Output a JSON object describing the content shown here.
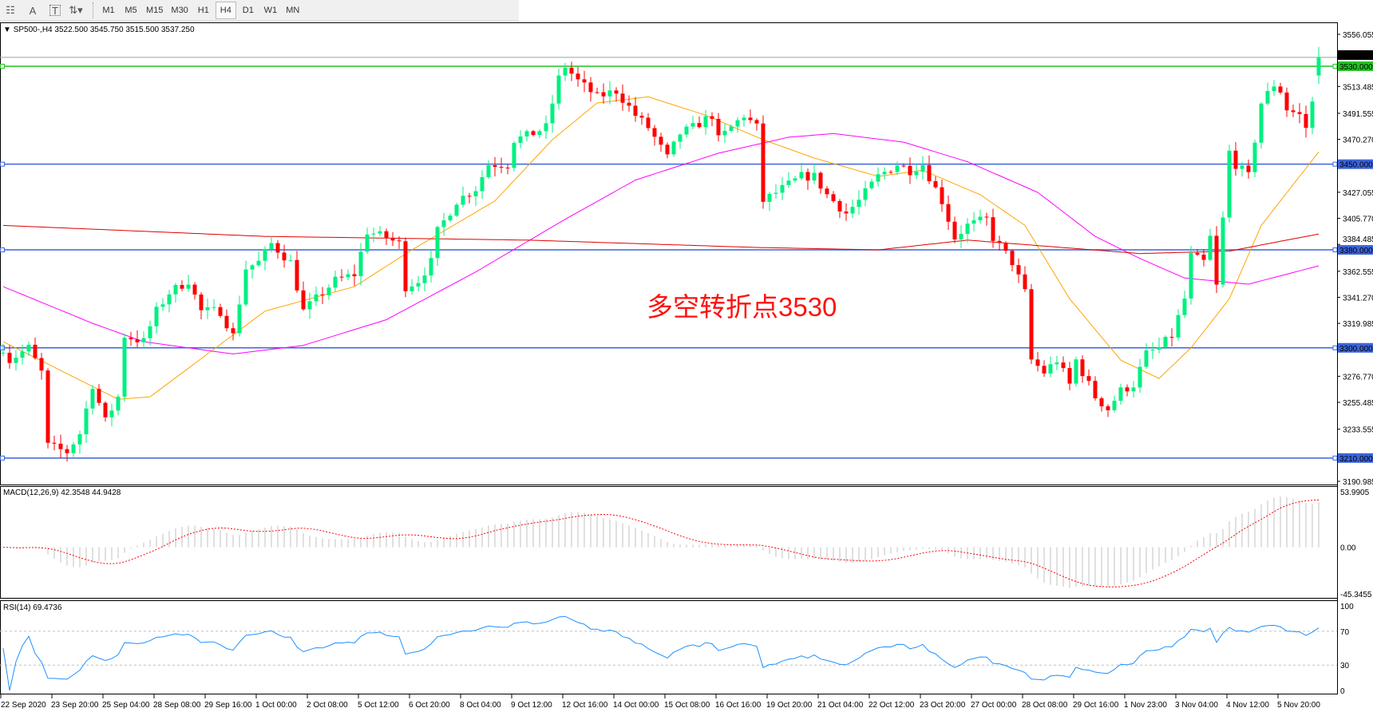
{
  "toolbar": {
    "items": [
      {
        "icon": "grid-icon",
        "label": ""
      },
      {
        "icon": "text-a-icon",
        "label": "A"
      },
      {
        "icon": "text-box-icon",
        "label": "T"
      },
      {
        "icon": "arrows-dropdown-icon",
        "label": "⇅▾"
      }
    ],
    "timeframes": [
      "M1",
      "M5",
      "M15",
      "M30",
      "H1",
      "H4",
      "D1",
      "W1",
      "MN"
    ],
    "active": "H4"
  },
  "chart": {
    "header": "SP500-,H4  3522.500 3545.750 3515.500 3537.250",
    "annotation": "多空转折点3530",
    "price_ticks": [
      "3556.055",
      "3513.485",
      "3491.555",
      "3470.270",
      "3427.055",
      "3405.770",
      "3384.485",
      "3362.555",
      "3341.270",
      "3319.985",
      "3276.770",
      "3255.485",
      "3233.555",
      "3190.985"
    ],
    "price_range": [
      3190.985,
      3556.055
    ],
    "bid": {
      "value": 3537.25,
      "label": "3537.250",
      "color": "#000000"
    },
    "levels": [
      {
        "value": 3530,
        "label": "3530.000",
        "color": "#22c322"
      },
      {
        "value": 3450,
        "label": "3450.000",
        "color": "#3c64dc"
      },
      {
        "value": 3380,
        "label": "3380.000",
        "color": "#3c64dc"
      },
      {
        "value": 3300,
        "label": "3300.000",
        "color": "#3c64dc"
      },
      {
        "value": 3210,
        "label": "3210.000",
        "color": "#3c64dc"
      }
    ],
    "time_labels": [
      "22 Sep 2020",
      "23 Sep 20:00",
      "25 Sep 04:00",
      "28 Sep 08:00",
      "29 Sep 16:00",
      "1 Oct 00:00",
      "2 Oct 08:00",
      "5 Oct 12:00",
      "6 Oct 20:00",
      "8 Oct 04:00",
      "9 Oct 12:00",
      "12 Oct 16:00",
      "14 Oct 00:00",
      "15 Oct 08:00",
      "16 Oct 16:00",
      "19 Oct 20:00",
      "21 Oct 04:00",
      "22 Oct 12:00",
      "23 Oct 20:00",
      "27 Oct 00:00",
      "28 Oct 08:00",
      "29 Oct 16:00",
      "1 Nov 23:00",
      "3 Nov 04:00",
      "4 Nov 12:00",
      "5 Nov 20:00"
    ],
    "colors": {
      "bull": "#00f080",
      "bear": "#ff0000",
      "ma_fast": "#ffa500",
      "ma_mid": "#ff00ff",
      "ma_slow": "#e00000"
    }
  },
  "chart_data": {
    "type": "candlestick",
    "bars": 207,
    "close_path": [
      [
        0,
        3300
      ],
      [
        1,
        3290
      ],
      [
        4,
        3300
      ],
      [
        6,
        3280
      ],
      [
        7,
        3220
      ],
      [
        10,
        3215
      ],
      [
        12,
        3230
      ],
      [
        14,
        3270
      ],
      [
        16,
        3240
      ],
      [
        18,
        3260
      ],
      [
        19,
        3310
      ],
      [
        22,
        3305
      ],
      [
        24,
        3330
      ],
      [
        26,
        3345
      ],
      [
        29,
        3355
      ],
      [
        31,
        3330
      ],
      [
        34,
        3330
      ],
      [
        36,
        3310
      ],
      [
        38,
        3365
      ],
      [
        40,
        3370
      ],
      [
        42,
        3385
      ],
      [
        45,
        3370
      ],
      [
        47,
        3330
      ],
      [
        49,
        3340
      ],
      [
        52,
        3355
      ],
      [
        55,
        3360
      ],
      [
        57,
        3395
      ],
      [
        60,
        3390
      ],
      [
        62,
        3385
      ],
      [
        63,
        3350
      ],
      [
        65,
        3355
      ],
      [
        67,
        3370
      ],
      [
        68,
        3395
      ],
      [
        71,
        3420
      ],
      [
        74,
        3430
      ],
      [
        76,
        3450
      ],
      [
        79,
        3450
      ],
      [
        80,
        3470
      ],
      [
        82,
        3473
      ],
      [
        85,
        3480
      ],
      [
        87,
        3520
      ],
      [
        88,
        3530
      ],
      [
        90,
        3518
      ],
      [
        93,
        3505
      ],
      [
        96,
        3510
      ],
      [
        99,
        3490
      ],
      [
        101,
        3480
      ],
      [
        104,
        3455
      ],
      [
        106,
        3475
      ],
      [
        108,
        3480
      ],
      [
        111,
        3490
      ],
      [
        112,
        3470
      ],
      [
        114,
        3480
      ],
      [
        116,
        3490
      ],
      [
        118,
        3480
      ],
      [
        119,
        3420
      ],
      [
        122,
        3430
      ],
      [
        125,
        3440
      ],
      [
        127,
        3440
      ],
      [
        129,
        3425
      ],
      [
        132,
        3410
      ],
      [
        134,
        3420
      ],
      [
        137,
        3440
      ],
      [
        140,
        3450
      ],
      [
        142,
        3445
      ],
      [
        144,
        3450
      ],
      [
        145,
        3440
      ],
      [
        147,
        3420
      ],
      [
        149,
        3390
      ],
      [
        151,
        3400
      ],
      [
        154,
        3405
      ],
      [
        155,
        3390
      ],
      [
        158,
        3370
      ],
      [
        160,
        3345
      ],
      [
        161,
        3290
      ],
      [
        163,
        3280
      ],
      [
        165,
        3290
      ],
      [
        167,
        3270
      ],
      [
        168,
        3290
      ],
      [
        171,
        3260
      ],
      [
        173,
        3250
      ],
      [
        175,
        3265
      ],
      [
        177,
        3270
      ],
      [
        179,
        3295
      ],
      [
        181,
        3300
      ],
      [
        183,
        3310
      ],
      [
        185,
        3340
      ],
      [
        186,
        3375
      ],
      [
        188,
        3370
      ],
      [
        189,
        3390
      ],
      [
        190,
        3350
      ],
      [
        192,
        3460
      ],
      [
        193,
        3450
      ],
      [
        195,
        3440
      ],
      [
        196,
        3470
      ],
      [
        197,
        3500
      ],
      [
        199,
        3515
      ],
      [
        200,
        3510
      ],
      [
        201,
        3495
      ],
      [
        203,
        3490
      ],
      [
        204,
        3480
      ],
      [
        205,
        3500
      ],
      [
        206,
        3537.25
      ]
    ],
    "ma_fast": [
      [
        0,
        3305
      ],
      [
        18,
        3258
      ],
      [
        23,
        3260
      ],
      [
        41,
        3330
      ],
      [
        55,
        3350
      ],
      [
        64,
        3380
      ],
      [
        77,
        3420
      ],
      [
        86,
        3470
      ],
      [
        93,
        3500
      ],
      [
        101,
        3505
      ],
      [
        110,
        3490
      ],
      [
        119,
        3470
      ],
      [
        127,
        3455
      ],
      [
        137,
        3440
      ],
      [
        144,
        3445
      ],
      [
        153,
        3425
      ],
      [
        160,
        3400
      ],
      [
        167,
        3340
      ],
      [
        175,
        3290
      ],
      [
        181,
        3275
      ],
      [
        186,
        3300
      ],
      [
        192,
        3340
      ],
      [
        197,
        3400
      ],
      [
        206,
        3460
      ]
    ],
    "ma_mid": [
      [
        0,
        3350
      ],
      [
        14,
        3320
      ],
      [
        22,
        3305
      ],
      [
        36,
        3295
      ],
      [
        47,
        3302
      ],
      [
        60,
        3323
      ],
      [
        74,
        3362
      ],
      [
        88,
        3405
      ],
      [
        99,
        3437
      ],
      [
        112,
        3459
      ],
      [
        123,
        3472
      ],
      [
        130,
        3475
      ],
      [
        141,
        3468
      ],
      [
        151,
        3452
      ],
      [
        162,
        3427
      ],
      [
        171,
        3391
      ],
      [
        178,
        3373
      ],
      [
        185,
        3357
      ],
      [
        195,
        3352
      ],
      [
        206,
        3367
      ]
    ],
    "ma_slow": [
      [
        0,
        3400
      ],
      [
        41,
        3391
      ],
      [
        82,
        3388
      ],
      [
        118,
        3382
      ],
      [
        137,
        3380
      ],
      [
        151,
        3388
      ],
      [
        178,
        3377
      ],
      [
        192,
        3379
      ],
      [
        206,
        3393
      ]
    ]
  },
  "macd": {
    "label": "MACD(12,26,9) 42.3548 44.9428",
    "ticks": [
      "53.9905",
      "0.00",
      "-45.3455"
    ],
    "range": [
      -45.3455,
      53.9905
    ]
  },
  "rsi": {
    "label": "RSI(14) 69.4736",
    "ticks": [
      "100",
      "70",
      "30",
      "0"
    ],
    "levels": [
      70,
      30
    ]
  }
}
